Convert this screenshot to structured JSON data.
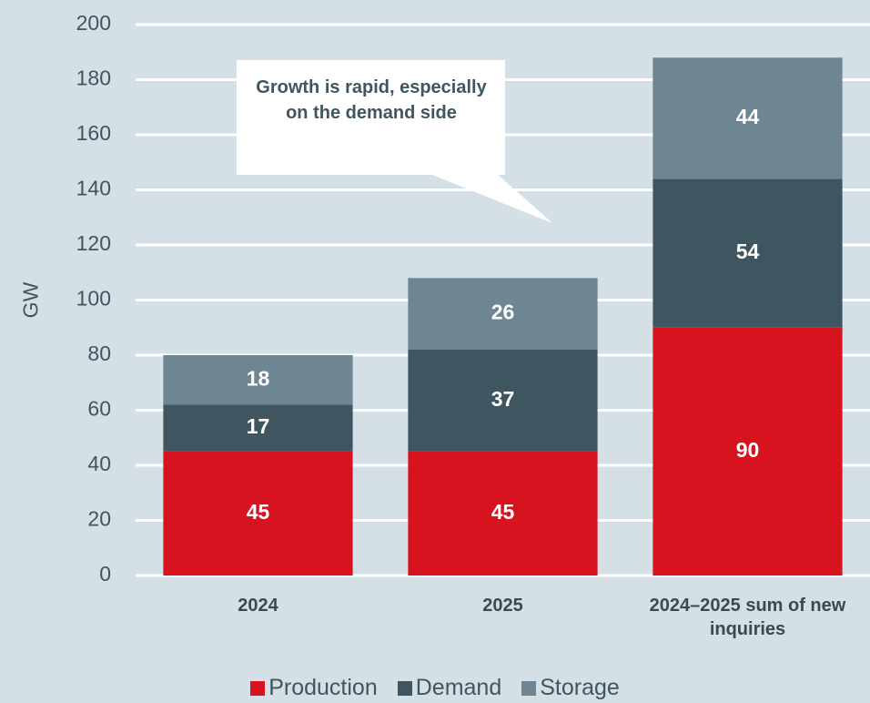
{
  "chart_data": {
    "type": "stacked_bar",
    "categories": [
      "2024",
      "2025",
      "2024–2025 sum of new inquiries"
    ],
    "series": [
      {
        "name": "Production",
        "color": "#d7131f",
        "values": [
          45,
          45,
          90
        ]
      },
      {
        "name": "Demand",
        "color": "#3f5660",
        "values": [
          17,
          37,
          54
        ]
      },
      {
        "name": "Storage",
        "color": "#6e8592",
        "values": [
          18,
          26,
          44
        ]
      }
    ],
    "y_label": "GW",
    "ylim": [
      0,
      200
    ],
    "yticks": [
      0,
      20,
      40,
      60,
      80,
      100,
      120,
      140,
      160,
      180,
      200
    ],
    "grid": true,
    "annotation": "Growth is rapid, especially on the demand side",
    "legend": "bottom"
  }
}
